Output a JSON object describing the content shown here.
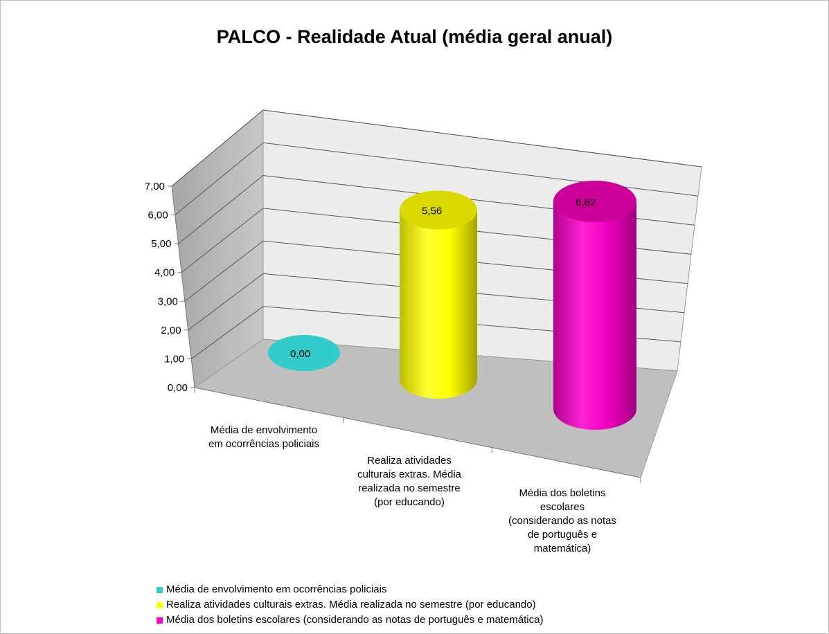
{
  "chart_data": {
    "type": "bar",
    "title": "PALCO - Realidade Atual (média geral anual)",
    "categories": [
      "Média de envolvimento em ocorrências policiais",
      "Realiza atividades culturais extras. Média realizada no semestre (por educando)",
      "Média dos boletins escolares (considerando as notas de português e matemática)"
    ],
    "category_labels_wrapped": [
      [
        "Média de envolvimento",
        "em ocorrências policiais"
      ],
      [
        "Realiza atividades",
        "culturais extras. Média",
        "realizada no semestre",
        "(por educando)"
      ],
      [
        "Média dos boletins",
        "escolares",
        "(considerando as notas",
        "de português e",
        "matemática)"
      ]
    ],
    "values": [
      0.0,
      5.56,
      6.82
    ],
    "value_labels": [
      "0,00",
      "5,56",
      "6,82"
    ],
    "colors": [
      "#33cccc",
      "#ffff00",
      "#ff00cc"
    ],
    "ylim": [
      0,
      7
    ],
    "yticks": [
      "0,00",
      "1,00",
      "2,00",
      "3,00",
      "4,00",
      "5,00",
      "6,00",
      "7,00"
    ],
    "grid": true,
    "legend_position": "bottom",
    "style": "3d-cylinder",
    "legend": [
      "Média de envolvimento em ocorrências policiais",
      "Realiza atividades culturais extras. Média realizada no semestre (por educando)",
      "Média dos boletins escolares (considerando as notas de português e matemática)"
    ]
  }
}
